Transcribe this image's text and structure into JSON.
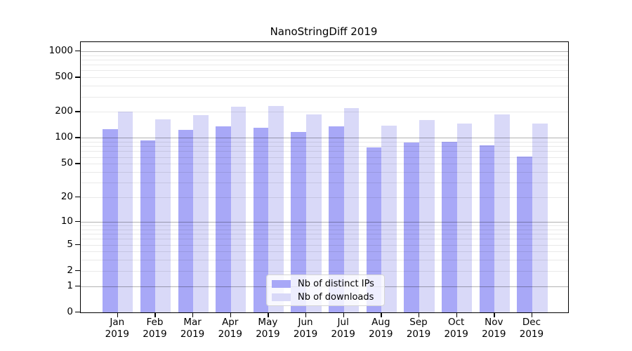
{
  "chart_data": {
    "type": "bar",
    "title": "NanoStringDiff 2019",
    "categories": [
      "Jan 2019",
      "Feb 2019",
      "Mar 2019",
      "Apr 2019",
      "May 2019",
      "Jun 2019",
      "Jul 2019",
      "Aug 2019",
      "Sep 2019",
      "Oct 2019",
      "Nov 2019",
      "Dec 2019"
    ],
    "series": [
      {
        "name": "Nb of distinct IPs",
        "color": "#a8a8f7",
        "values": [
          126,
          93,
          123,
          137,
          130,
          117,
          136,
          77,
          89,
          90,
          82,
          61
        ]
      },
      {
        "name": "Nb of downloads",
        "color": "#d9d9f8",
        "values": [
          201,
          165,
          183,
          228,
          233,
          186,
          220,
          138,
          160,
          146,
          188,
          146
        ]
      }
    ],
    "yscale": "log1p",
    "yticks": [
      0,
      1,
      2,
      5,
      10,
      20,
      50,
      100,
      200,
      500,
      1000
    ],
    "ylim": [
      0,
      1000
    ],
    "xlabel": "",
    "ylabel": "",
    "grid": true,
    "gridlines_major_at": [
      1,
      10,
      100,
      1000
    ],
    "legend_position": "lower-center-inside",
    "legend_items": [
      "Nb of distinct IPs",
      "Nb of downloads"
    ]
  },
  "colors": {
    "background": "#ffffff",
    "ips_bar": "#a8a8f7",
    "downloads_bar": "#d9d9f8",
    "axis": "#000000"
  }
}
